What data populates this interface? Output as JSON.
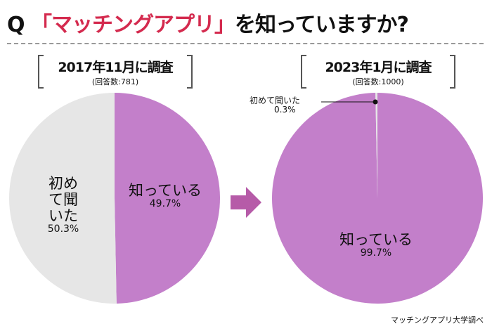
{
  "title": {
    "prefix": "Q",
    "highlight": "「マッチングアプリ」",
    "suffix": "を知っていますか?"
  },
  "source": "マッチングアプリ大学調べ",
  "colors": {
    "known": "#c37fca",
    "first_time": "#e6e6e6",
    "accent": "#d42a4e",
    "arrow": "#b65ba8"
  },
  "chart_data": [
    {
      "type": "pie",
      "title": "2017年11月に調査",
      "subtitle": "(回答数:781)",
      "slices": [
        {
          "label": "知っている",
          "value": 49.7,
          "display": "49.7%"
        },
        {
          "label": "初めて聞いた",
          "value": 50.3,
          "display": "50.3%"
        }
      ]
    },
    {
      "type": "pie",
      "title": "2023年1月に調査",
      "subtitle": "(回答数:1000)",
      "slices": [
        {
          "label": "知っている",
          "value": 99.7,
          "display": "99.7%"
        },
        {
          "label": "初めて聞いた",
          "value": 0.3,
          "display": "0.3%"
        }
      ]
    }
  ]
}
